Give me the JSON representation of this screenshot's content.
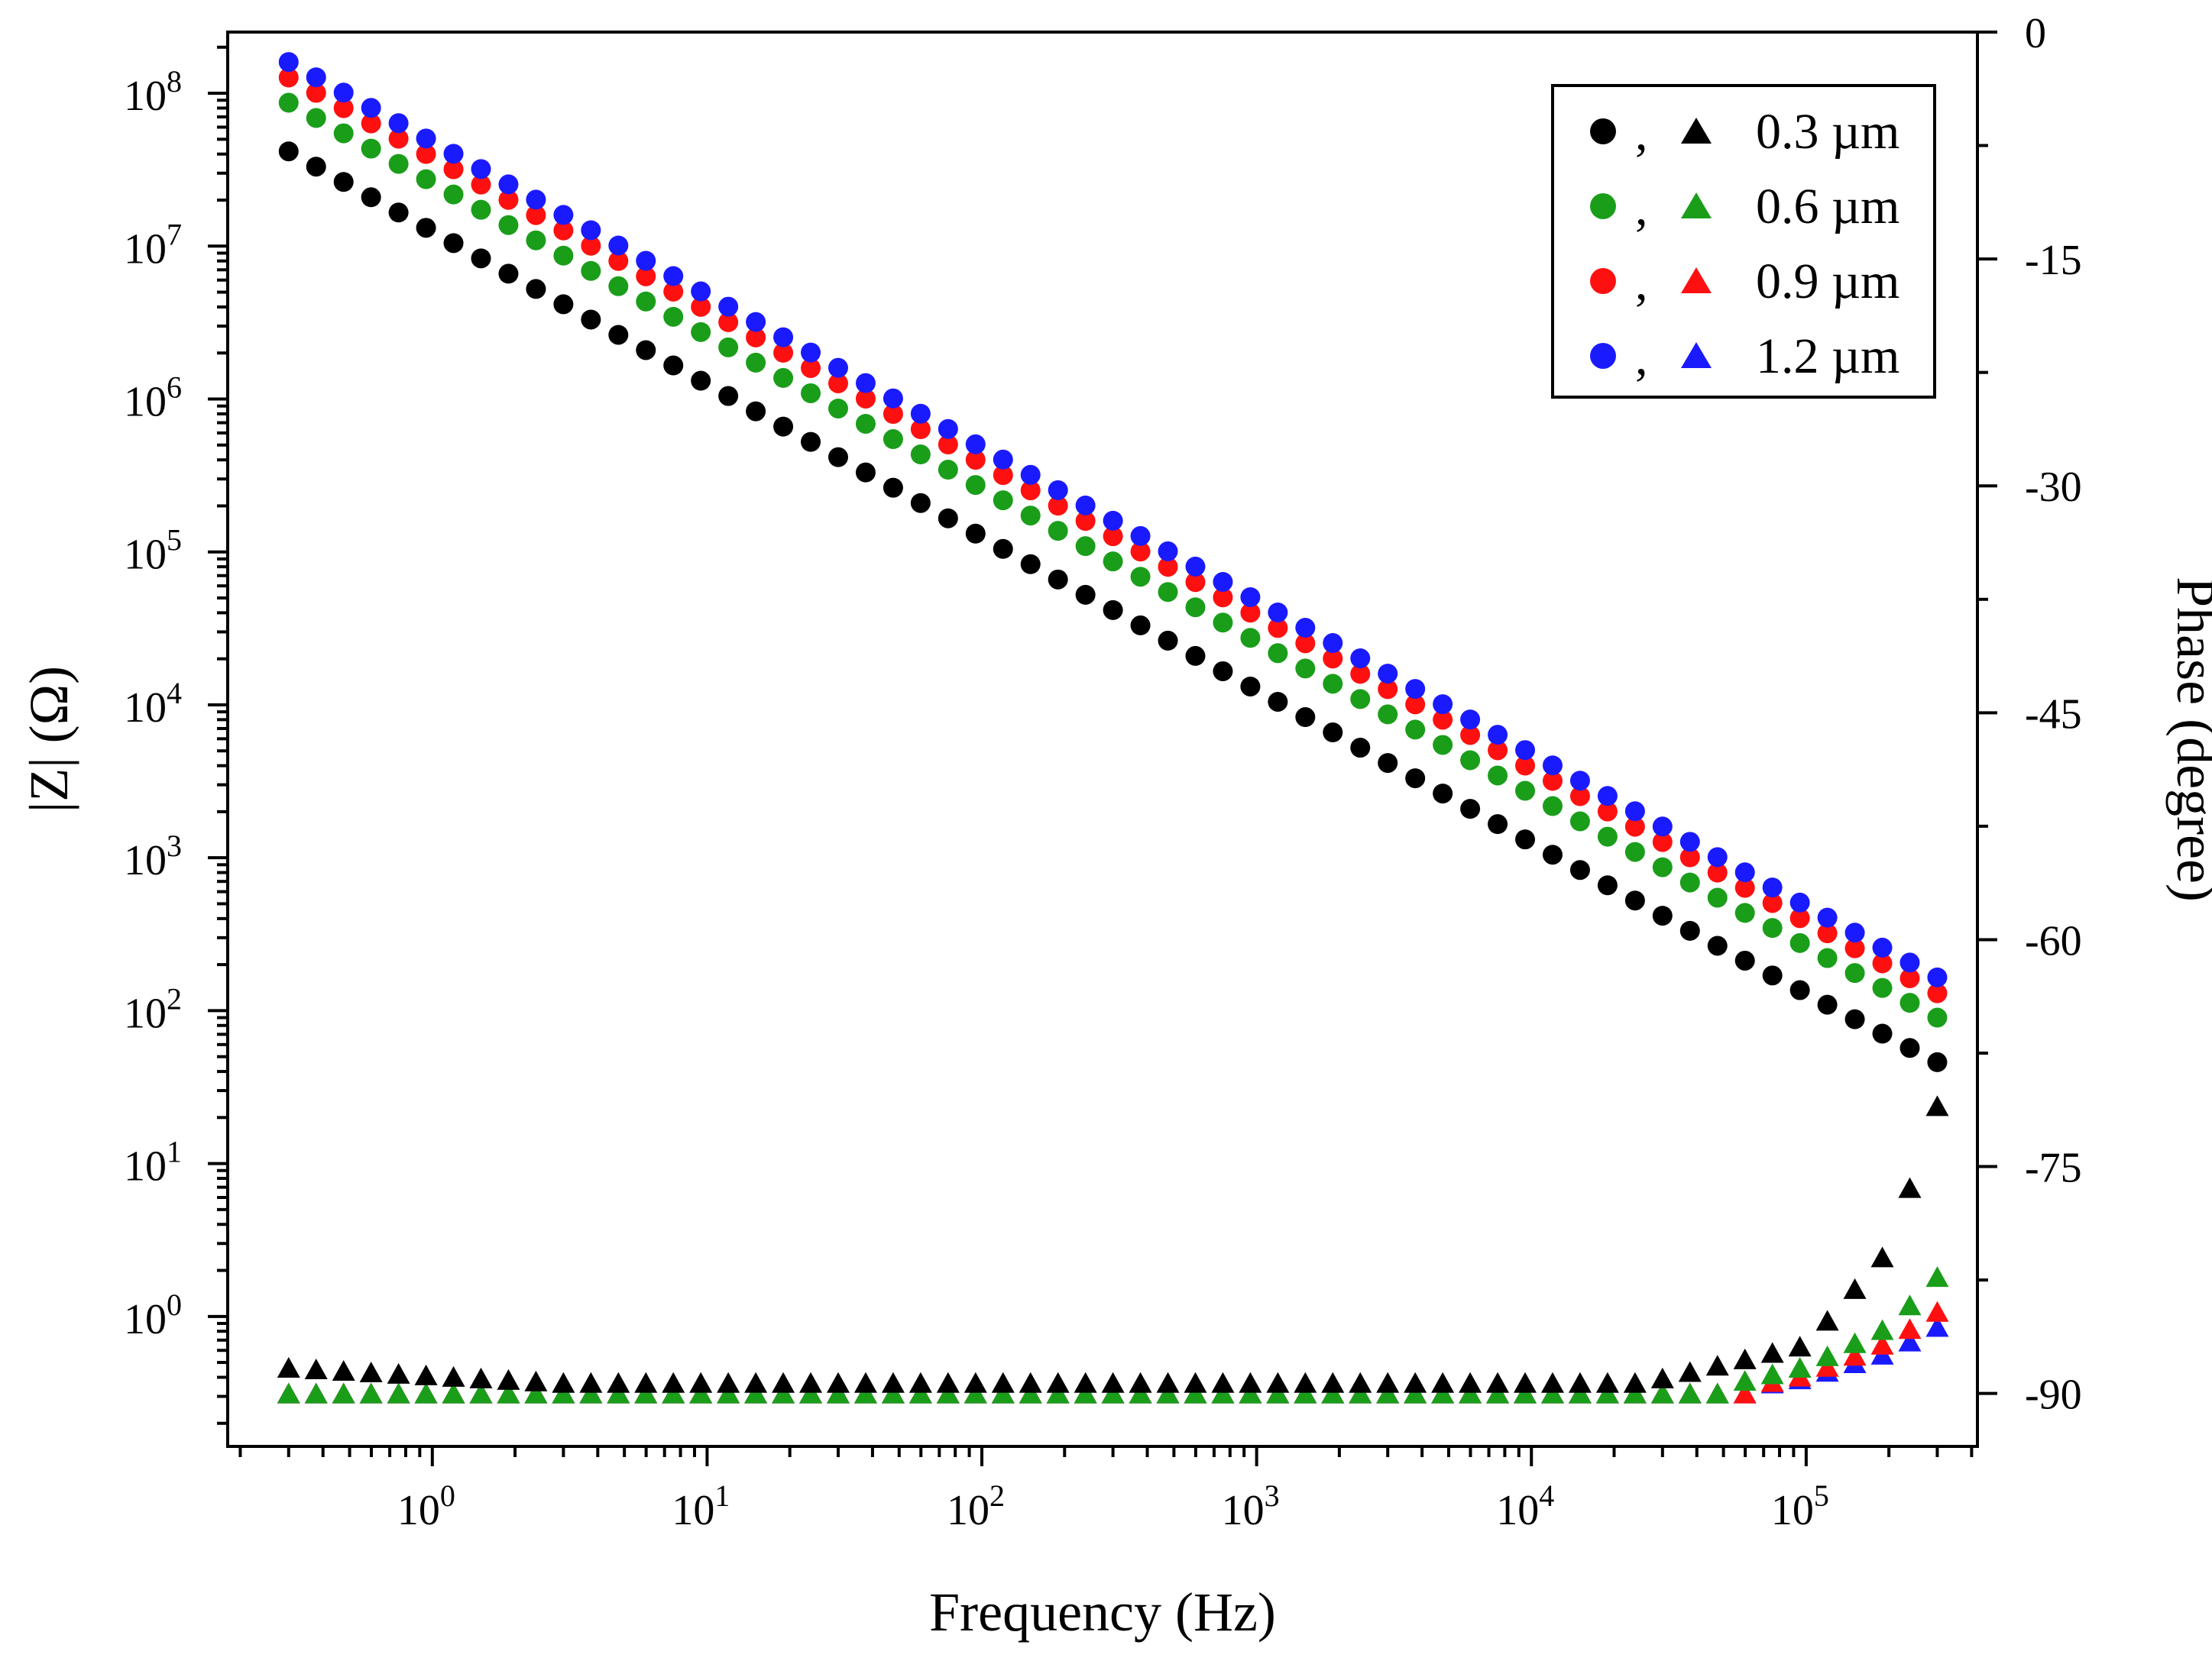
{
  "chart_data": {
    "type": "scatter",
    "xlabel": "Frequency (Hz)",
    "ylabel_left": "|Z| (Ω)",
    "ylabel_right": "Phase (degree)",
    "x_scale": "log",
    "xlim": [
      0.18,
      420000
    ],
    "left_axis": {
      "scale": "log",
      "ylim_log10": [
        -0.85,
        8.4
      ],
      "tick_exponents": [
        0,
        1,
        2,
        3,
        4,
        5,
        6,
        7,
        8
      ],
      "tick_base": "10"
    },
    "right_axis": {
      "ylim": [
        -93.5,
        0
      ],
      "ticks": [
        0,
        -15,
        -30,
        -45,
        -60,
        -75,
        -90
      ],
      "tick_labels": [
        "0",
        "-15",
        "-30",
        "-45",
        "-60",
        "-75",
        "-90"
      ]
    },
    "x_tick_exponents": [
      0,
      1,
      2,
      3,
      4,
      5
    ],
    "x_tick_base": "10",
    "frequency_range_hz": [
      0.3,
      300000
    ],
    "points_per_decade": 10,
    "legend": {
      "position": "top-right",
      "separator": ",",
      "entries": [
        "0.3 µm",
        "0.6 µm",
        "0.9 µm",
        "1.2 µm"
      ]
    },
    "series": [
      {
        "name": "0.3 µm",
        "color": "#000000",
        "impedance": {
          "marker": "circle",
          "z_at_1hz_ohm": 12500000,
          "slope": -1.0,
          "high_freq_deviation": {
            "onset_hz": 20000,
            "values": [
              [
                300000,
                46
              ]
            ]
          }
        },
        "phase": {
          "marker": "triangle",
          "low_freq_start_deg": -88.3,
          "low_freq_plateau_deg": -89.3,
          "high_freq_rise": [
            [
              30000,
              -89.0
            ],
            [
              100000,
              -86.8
            ],
            [
              200000,
              -80.5
            ],
            [
              250000,
              -75.3
            ],
            [
              300000,
              -71.0
            ]
          ]
        }
      },
      {
        "name": "0.6 µm",
        "color": "#1a9e1a",
        "impedance": {
          "marker": "circle",
          "z_at_1hz_ohm": 26000000,
          "slope": -1.0,
          "high_freq_deviation": {
            "onset_hz": 30000,
            "values": [
              [
                300000,
                90
              ]
            ]
          }
        },
        "phase": {
          "marker": "triangle",
          "low_freq_start_deg": -90.0,
          "low_freq_plateau_deg": -90.0,
          "high_freq_rise": [
            [
              50000,
              -89.5
            ],
            [
              100000,
              -88.2
            ],
            [
              200000,
              -85.6
            ],
            [
              300000,
              -82.3
            ]
          ]
        }
      },
      {
        "name": "0.9 µm",
        "color": "#ff1010",
        "impedance": {
          "marker": "circle",
          "z_at_1hz_ohm": 38000000,
          "slope": -1.0,
          "high_freq_deviation": {
            "onset_hz": 40000,
            "values": [
              [
                300000,
                130
              ]
            ]
          }
        },
        "phase": {
          "marker": "triangle",
          "low_freq_start_deg": -90.0,
          "low_freq_plateau_deg": -90.0,
          "high_freq_rise": [
            [
              60000,
              -89.6
            ],
            [
              100000,
              -88.8
            ],
            [
              200000,
              -86.6
            ],
            [
              300000,
              -84.6
            ]
          ]
        }
      },
      {
        "name": "1.2 µm",
        "color": "#1a1aff",
        "impedance": {
          "marker": "circle",
          "z_at_1hz_ohm": 48000000,
          "slope": -1.0,
          "high_freq_deviation": {
            "onset_hz": 40000,
            "values": [
              [
                300000,
                165
              ]
            ]
          }
        },
        "phase": {
          "marker": "triangle",
          "low_freq_start_deg": -90.0,
          "low_freq_plateau_deg": -90.0,
          "high_freq_rise": [
            [
              60000,
              -89.6
            ],
            [
              100000,
              -89.0
            ],
            [
              200000,
              -87.3
            ],
            [
              300000,
              -85.6
            ]
          ]
        }
      }
    ]
  }
}
